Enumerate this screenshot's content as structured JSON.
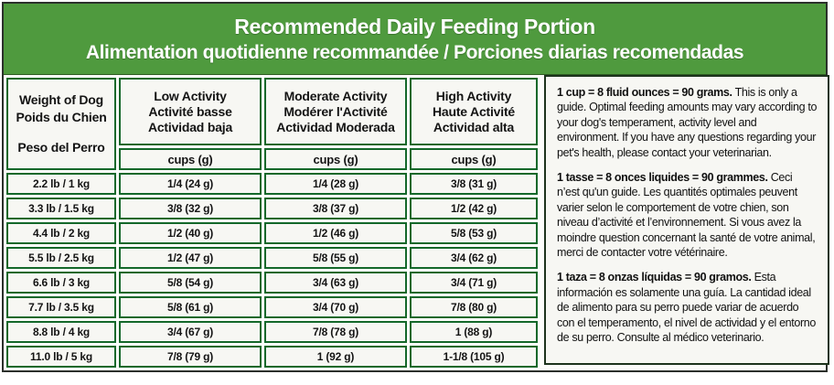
{
  "banner": {
    "title_en": "Recommended Daily Feeding Portion",
    "title_fr_es": "Alimentation quotidienne recommandée / Porciones diarias recomendadas"
  },
  "table": {
    "weight_header": {
      "en": "Weight of Dog",
      "fr": "Poids du Chien",
      "es": "Peso del Perro"
    },
    "columns": [
      {
        "en": "Low Activity",
        "fr": "Activité basse",
        "es": "Actividad baja",
        "unit": "cups (g)"
      },
      {
        "en": "Moderate Activity",
        "fr": "Modérer l'Activité",
        "es": "Actividad Moderada",
        "unit": "cups (g)"
      },
      {
        "en": "High Activity",
        "fr": "Haute Activité",
        "es": "Actividad alta",
        "unit": "cups (g)"
      }
    ],
    "rows": [
      {
        "weight": "2.2 lb / 1 kg",
        "low": "1/4 (24 g)",
        "moderate": "1/4 (28 g)",
        "high": "3/8 (31 g)"
      },
      {
        "weight": "3.3 lb / 1.5 kg",
        "low": "3/8 (32 g)",
        "moderate": "3/8 (37 g)",
        "high": "1/2 (42 g)"
      },
      {
        "weight": "4.4 lb / 2 kg",
        "low": "1/2 (40 g)",
        "moderate": "1/2 (46 g)",
        "high": "5/8 (53 g)"
      },
      {
        "weight": "5.5 lb / 2.5 kg",
        "low": "1/2 (47 g)",
        "moderate": "5/8 (55 g)",
        "high": "3/4 (62 g)"
      },
      {
        "weight": "6.6 lb / 3 kg",
        "low": "5/8 (54 g)",
        "moderate": "3/4 (63 g)",
        "high": "3/4 (71 g)"
      },
      {
        "weight": "7.7 lb / 3.5 kg",
        "low": "5/8 (61 g)",
        "moderate": "3/4 (70 g)",
        "high": "7/8 (80 g)"
      },
      {
        "weight": "8.8 lb / 4 kg",
        "low": "3/4 (67 g)",
        "moderate": "7/8 (78 g)",
        "high": "1 (88 g)"
      },
      {
        "weight": "11.0 lb / 5 kg",
        "low": "7/8 (79 g)",
        "moderate": "1 (92 g)",
        "high": "1-1/8 (105 g)"
      }
    ]
  },
  "notes": [
    {
      "lead": "1 cup = 8 fluid ounces = 90 grams.",
      "body": "This is only a guide. Optimal feeding amounts may vary according to your dog's temperament, activity level and environment. If you have any questions regarding your pet's health, please contact your veterinarian."
    },
    {
      "lead": "1 tasse = 8 onces liquides = 90 grammes.",
      "body": "Ceci n’est qu'un guide. Les quantités optimales peuvent varier selon le comportement de votre chien, son niveau d’activité et l’environnement. Si vous avez la moindre question concernant la santé de votre animal, merci de contacter votre vétérinaire."
    },
    {
      "lead": "1 taza = 8 onzas líquidas = 90 gramos.",
      "body": "Esta información es solamente una guía. La cantidad ideal de alimento para su perro puede variar de acuerdo con el temperamento, el nivel de actividad y el entorno de su perro. Consulte al médico veterinario."
    }
  ],
  "colors": {
    "banner_green": "#4f9a3e",
    "table_border_green": "#14682a",
    "panel_background": "#f7f7f3",
    "outer_border": "#2b302b"
  }
}
